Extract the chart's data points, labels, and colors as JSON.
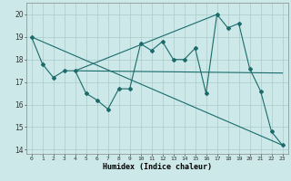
{
  "xlabel": "Humidex (Indice chaleur)",
  "ylabel": "",
  "xlim": [
    -0.5,
    23.5
  ],
  "ylim": [
    13.8,
    20.5
  ],
  "yticks": [
    14,
    15,
    16,
    17,
    18,
    19,
    20
  ],
  "xticks": [
    0,
    1,
    2,
    3,
    4,
    5,
    6,
    7,
    8,
    9,
    10,
    11,
    12,
    13,
    14,
    15,
    16,
    17,
    18,
    19,
    20,
    21,
    22,
    23
  ],
  "bg_color": "#cce8e8",
  "grid_color": "#aacccc",
  "line_color": "#1a6b6b",
  "series": [
    [
      0,
      19.0
    ],
    [
      1,
      17.8
    ],
    [
      2,
      17.2
    ],
    [
      3,
      17.5
    ],
    [
      4,
      17.5
    ],
    [
      5,
      16.5
    ],
    [
      6,
      16.2
    ],
    [
      7,
      15.8
    ],
    [
      8,
      16.7
    ],
    [
      9,
      16.7
    ],
    [
      10,
      18.7
    ],
    [
      11,
      18.4
    ],
    [
      12,
      18.8
    ],
    [
      13,
      18.0
    ],
    [
      14,
      18.0
    ],
    [
      15,
      18.5
    ],
    [
      16,
      16.5
    ],
    [
      17,
      20.0
    ],
    [
      18,
      19.4
    ],
    [
      19,
      19.6
    ],
    [
      20,
      17.6
    ],
    [
      21,
      16.6
    ],
    [
      22,
      14.8
    ],
    [
      23,
      14.2
    ]
  ],
  "line2": [
    [
      0,
      19.0
    ],
    [
      23,
      14.2
    ]
  ],
  "line3": [
    [
      4,
      17.5
    ],
    [
      23,
      17.4
    ]
  ],
  "line4": [
    [
      4,
      17.5
    ],
    [
      17,
      20.0
    ]
  ]
}
